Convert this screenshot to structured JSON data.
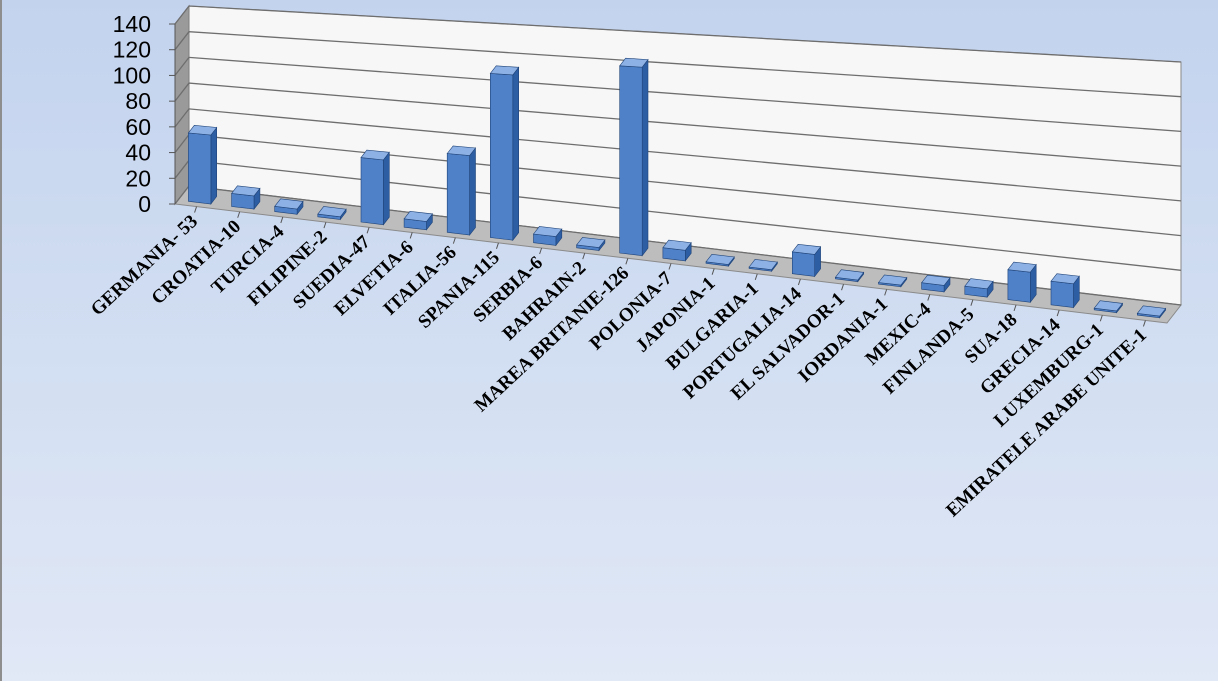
{
  "chart_data": {
    "type": "bar",
    "style": "3d-column",
    "title": "",
    "xlabel": "",
    "ylabel": "",
    "ylim": [
      0,
      140
    ],
    "yticks": [
      0,
      20,
      40,
      60,
      80,
      100,
      120,
      140
    ],
    "grid": true,
    "legend": "none",
    "categories": [
      "GERMANIA- 53",
      "CROATIA-10",
      "TURCIA-4",
      "FILIPINE-2",
      "SUEDIA-47",
      "ELVETIA-6",
      "ITALIA-56",
      "SPANIA-115",
      "SERBIA-6",
      "BAHRAIN-2",
      "MAREA BRITANIE-126",
      "POLONIA-7",
      "JAPONIA-1",
      "BULGARIA-1",
      "PORTUGALIA-14",
      "EL SALVADOR-1",
      "IORDANIA-1",
      "MEXIC-4",
      "FINLANDA-5",
      "SUA-18",
      "GRECIA-14",
      "LUXEMBURG-1",
      "EMIRATELE ARABE UNITE-1"
    ],
    "values": [
      53,
      10,
      4,
      2,
      47,
      6,
      56,
      115,
      6,
      2,
      126,
      7,
      1,
      1,
      14,
      1,
      1,
      4,
      5,
      18,
      14,
      1,
      1
    ],
    "colors": {
      "bar_front": "#4f81c8",
      "bar_side": "#2d5ea4",
      "bar_top": "#8db1e4",
      "wall": "#f7f7f7",
      "side_wall": "#9a9a9a",
      "floor": "#bdbdbd",
      "grid": "#6e6e6e"
    }
  }
}
